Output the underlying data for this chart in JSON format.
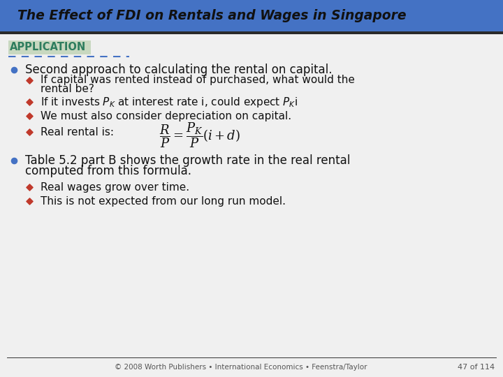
{
  "title": "The Effect of FDI on Rentals and Wages in Singapore",
  "title_bg_color": "#4472C4",
  "title_text_color": "#111111",
  "body_bg_color": "#F0F0F0",
  "app_label": "APPLICATION",
  "app_label_color": "#2E7D5E",
  "app_label_bg": "#C8D8C0",
  "dashed_line_color": "#4472C4",
  "bullet_color": "#4472C4",
  "diamond_color": "#C0392B",
  "footer_line_color": "#333333",
  "footer_text": "© 2008 Worth Publishers • International Economics • Feenstra/Taylor",
  "footer_right": "47 of 114",
  "sub1_3": "We must also consider depreciation on capital.",
  "sub1_4": "Real rental is:",
  "sub2_1": "Real wages grow over time.",
  "sub2_2": "This is not expected from our long run model."
}
